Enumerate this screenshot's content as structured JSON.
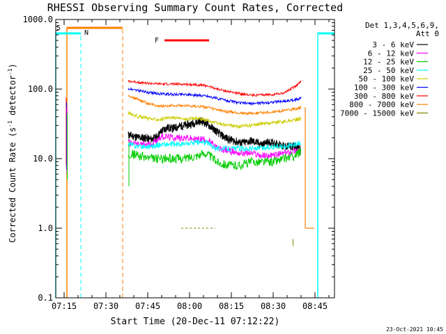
{
  "chart_data": {
    "type": "line",
    "title": "RHESSI Observing Summary Count Rates, Corrected",
    "xlabel": "Start Time (20-Dec-11 07:12:22)",
    "ylabel": "Corrected Count Rate (s",
    "ylabel_sup1": "-1",
    "ylabel_mid": " detector",
    "ylabel_sup2": "-1",
    "ylabel_end": ")",
    "xlim": [
      "07:12",
      "08:52"
    ],
    "ylim": [
      0.1,
      1000.0
    ],
    "yscale": "log",
    "x_ticks": [
      "07:15",
      "07:30",
      "07:45",
      "08:00",
      "08:15",
      "08:30",
      "08:45"
    ],
    "y_ticks": [
      "0.1",
      "1.0",
      "10.0",
      "100.0",
      "1000.0"
    ],
    "footer_date": "23-Oct-2021 10:45",
    "legend": {
      "header1": "Det 1,3,4,5,6,9,",
      "header2": "Att 0",
      "placement": "right"
    },
    "series": [
      {
        "name": "3 - 6 keV",
        "color": "#000000",
        "x": [
          "07:38",
          "07:40",
          "07:42",
          "07:44",
          "07:46",
          "07:48",
          "07:50",
          "07:52",
          "07:54",
          "07:56",
          "07:58",
          "08:00",
          "08:02",
          "08:04",
          "08:06",
          "08:08",
          "08:10",
          "08:12",
          "08:14",
          "08:16",
          "08:18",
          "08:20",
          "08:22",
          "08:24",
          "08:26",
          "08:28",
          "08:30",
          "08:32",
          "08:34",
          "08:36",
          "08:38",
          "08:40"
        ],
        "y": [
          22,
          21,
          20,
          20,
          19,
          20,
          25,
          28,
          27,
          29,
          30,
          31,
          33,
          35,
          32,
          28,
          24,
          21,
          19,
          18,
          17,
          17,
          18,
          17,
          16,
          17,
          17,
          16,
          15,
          15,
          15,
          14
        ]
      },
      {
        "name": "6 - 12 keV",
        "color": "#ff00ff",
        "x": [
          "07:38",
          "07:42",
          "07:46",
          "07:50",
          "07:54",
          "07:58",
          "08:02",
          "08:06",
          "08:10",
          "08:14",
          "08:18",
          "08:22",
          "08:26",
          "08:30",
          "08:34",
          "08:38",
          "08:40"
        ],
        "y": [
          17,
          16,
          16,
          21,
          20,
          20,
          19,
          19,
          14,
          13,
          12,
          12,
          11,
          11,
          12,
          13,
          13
        ]
      },
      {
        "name": "12 - 25 keV",
        "color": "#00cc00",
        "x": [
          "07:38",
          "07:42",
          "07:46",
          "07:50",
          "07:54",
          "07:58",
          "08:02",
          "08:06",
          "08:10",
          "08:14",
          "08:18",
          "08:22",
          "08:26",
          "08:30",
          "08:34",
          "08:38",
          "08:40"
        ],
        "y": [
          12,
          11,
          10,
          10,
          10,
          10,
          11,
          12,
          9,
          8,
          8,
          9,
          9,
          9,
          10,
          11,
          13
        ]
      },
      {
        "name": "25 - 50 keV",
        "color": "#00ffff",
        "x": [
          "07:38",
          "07:42",
          "07:46",
          "07:50",
          "07:54",
          "07:58",
          "08:02",
          "08:06",
          "08:10",
          "08:14",
          "08:18",
          "08:22",
          "08:26",
          "08:30",
          "08:34",
          "08:38",
          "08:40"
        ],
        "y": [
          16,
          15,
          15,
          16,
          16,
          16,
          17,
          17,
          14,
          14,
          14,
          14,
          14,
          15,
          15,
          16,
          17
        ]
      },
      {
        "name": "50 - 100 keV",
        "color": "#cccc00",
        "x": [
          "07:38",
          "07:42",
          "07:46",
          "07:50",
          "07:54",
          "07:58",
          "08:02",
          "08:06",
          "08:10",
          "08:14",
          "08:18",
          "08:22",
          "08:26",
          "08:30",
          "08:34",
          "08:38",
          "08:40"
        ],
        "y": [
          45,
          40,
          37,
          37,
          39,
          37,
          38,
          36,
          32,
          30,
          29,
          30,
          32,
          33,
          34,
          36,
          38
        ]
      },
      {
        "name": "100 - 300 keV",
        "color": "#0000ff",
        "x": [
          "07:38",
          "07:42",
          "07:46",
          "07:50",
          "07:54",
          "07:58",
          "08:02",
          "08:06",
          "08:10",
          "08:14",
          "08:18",
          "08:22",
          "08:26",
          "08:30",
          "08:34",
          "08:38",
          "08:40"
        ],
        "y": [
          100,
          95,
          88,
          85,
          84,
          84,
          82,
          80,
          73,
          68,
          63,
          62,
          63,
          65,
          67,
          70,
          75
        ]
      },
      {
        "name": "300 - 800 keV",
        "color": "#ff0000",
        "x": [
          "07:38",
          "07:42",
          "07:46",
          "07:50",
          "07:54",
          "07:58",
          "08:02",
          "08:06",
          "08:10",
          "08:14",
          "08:18",
          "08:22",
          "08:26",
          "08:30",
          "08:34",
          "08:38",
          "08:40"
        ],
        "y": [
          130,
          125,
          120,
          118,
          118,
          117,
          116,
          112,
          100,
          92,
          86,
          82,
          82,
          84,
          88,
          110,
          130
        ]
      },
      {
        "name": "800 - 7000 keV",
        "color": "#ff8000",
        "x": [
          "07:38",
          "07:42",
          "07:46",
          "07:50",
          "07:54",
          "07:58",
          "08:02",
          "08:06",
          "08:10",
          "08:14",
          "08:18",
          "08:22",
          "08:26",
          "08:30",
          "08:34",
          "08:38",
          "08:40"
        ],
        "y": [
          80,
          70,
          60,
          57,
          58,
          58,
          57,
          55,
          50,
          47,
          45,
          45,
          46,
          47,
          49,
          52,
          55
        ]
      },
      {
        "name": "7000 - 15000 keV",
        "color": "#808000",
        "x": [
          "07:57",
          "08:03",
          "08:37"
        ],
        "y": [
          1.0,
          1.0,
          0.7
        ]
      }
    ],
    "intervals": [
      {
        "label": "S",
        "color": "#ff8000",
        "start": "07:16",
        "end": "07:36"
      },
      {
        "label": "N",
        "color": "#00ffff",
        "start": "07:12",
        "end": "07:21"
      },
      {
        "label": "N",
        "color": "#00ffff",
        "start": "08:46",
        "end": "08:52"
      },
      {
        "label": "F",
        "color": "#ff0000",
        "start": "07:51",
        "end": "08:07"
      }
    ],
    "visible_interval_labels": [
      "S",
      "N",
      "F"
    ]
  }
}
